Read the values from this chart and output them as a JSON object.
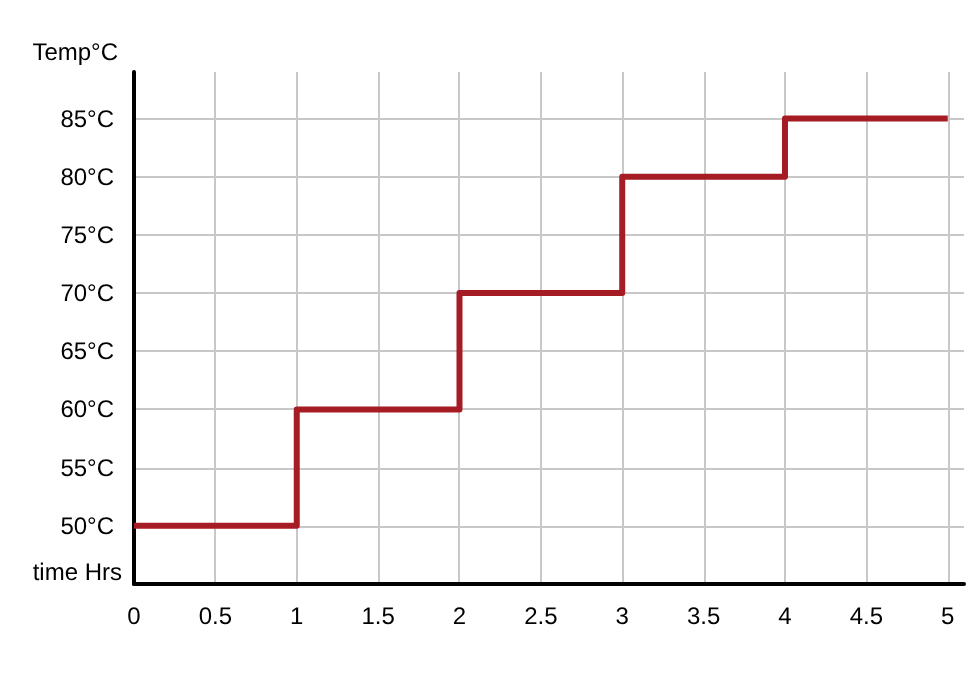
{
  "chart_data": {
    "type": "step",
    "xlabel": "time Hrs",
    "ylabel": "Temp°C",
    "x": [
      0,
      1,
      2,
      3,
      4,
      5
    ],
    "series": [
      {
        "color": "#a51c24",
        "values": [
          50,
          60,
          70,
          80,
          85,
          85
        ]
      }
    ],
    "xlim": [
      0,
      5.1
    ],
    "xticks": [
      0,
      0.5,
      1,
      1.5,
      2,
      2.5,
      3,
      3.5,
      4,
      4.5,
      5
    ],
    "ylim": [
      45,
      89
    ],
    "yticks": [
      {
        "value": 50,
        "label": "50°C"
      },
      {
        "value": 55,
        "label": "55°C"
      },
      {
        "value": 60,
        "label": "60°C"
      },
      {
        "value": 65,
        "label": "65°C"
      },
      {
        "value": 70,
        "label": "70°C"
      },
      {
        "value": 75,
        "label": "75°C"
      },
      {
        "value": 80,
        "label": "80°C"
      },
      {
        "value": 85,
        "label": "85°C"
      }
    ],
    "grid": true,
    "legend": false,
    "marker": "none",
    "line_style": "solid"
  }
}
